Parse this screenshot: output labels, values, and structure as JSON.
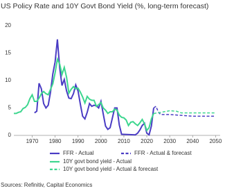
{
  "chart_data": {
    "type": "line",
    "title": "US Policy Rate and 10Y Govt Bond Yield (%, long-term forecast)",
    "source": "Sources: Refinitiv, Capital Economics",
    "xlim": [
      1962,
      2052
    ],
    "xticks": [
      1970,
      1980,
      1990,
      2000,
      2010,
      2020,
      2030,
      2040,
      2050
    ],
    "ylim": [
      0,
      20
    ],
    "yticks": [
      0,
      5,
      10,
      15,
      20
    ],
    "series": [
      {
        "name": "FFR - Actual",
        "color": "#4a3cc4",
        "dashed": false,
        "x": [
          1971,
          1972,
          1973,
          1974,
          1975,
          1976,
          1977,
          1978,
          1979,
          1980,
          1981,
          1982,
          1983,
          1984,
          1985,
          1986,
          1987,
          1988,
          1989,
          1990,
          1991,
          1992,
          1993,
          1994,
          1995,
          1996,
          1997,
          1998,
          1999,
          2000,
          2001,
          2002,
          2003,
          2004,
          2005,
          2006,
          2007,
          2008,
          2009,
          2015,
          2016,
          2017,
          2018,
          2019,
          2020,
          2021,
          2022,
          2023
        ],
        "values": [
          4.1,
          4.4,
          9.5,
          8.5,
          5.8,
          5.0,
          5.5,
          7.9,
          11.2,
          13.4,
          17.5,
          12.3,
          9.1,
          10.2,
          8.1,
          6.8,
          6.7,
          7.6,
          9.2,
          8.1,
          5.7,
          3.5,
          3.0,
          4.2,
          5.8,
          5.3,
          5.5,
          5.4,
          5.0,
          6.2,
          3.9,
          1.7,
          1.1,
          1.4,
          3.2,
          5.0,
          5.0,
          1.9,
          0.2,
          0.1,
          0.4,
          1.0,
          1.8,
          2.2,
          0.4,
          0.1,
          1.7,
          5.0
        ]
      },
      {
        "name": "FFR - Actual & forecast",
        "color": "#4a3cc4",
        "dashed": true,
        "x": [
          2023,
          2024,
          2025,
          2026,
          2027,
          2030,
          2040,
          2050
        ],
        "values": [
          5.0,
          5.3,
          4.3,
          3.8,
          3.8,
          3.8,
          3.5,
          3.5
        ]
      },
      {
        "name": "10Y govt bond yield - Actual",
        "color": "#3dd68f",
        "dashed": false,
        "x": [
          1962,
          1963,
          1964,
          1965,
          1966,
          1967,
          1968,
          1969,
          1970,
          1971,
          1972,
          1973,
          1974,
          1975,
          1976,
          1977,
          1978,
          1979,
          1980,
          1981,
          1982,
          1983,
          1984,
          1985,
          1986,
          1987,
          1988,
          1989,
          1990,
          1991,
          1992,
          1993,
          1994,
          1995,
          1996,
          1997,
          1998,
          1999,
          2000,
          2001,
          2002,
          2003,
          2004,
          2005,
          2006,
          2007,
          2008,
          2009,
          2010,
          2011,
          2012,
          2013,
          2014,
          2015,
          2016,
          2017,
          2018,
          2019,
          2020,
          2021,
          2022,
          2023
        ],
        "values": [
          4.0,
          4.0,
          4.2,
          4.3,
          4.9,
          5.1,
          5.6,
          6.7,
          7.4,
          6.2,
          6.2,
          6.8,
          7.6,
          8.0,
          7.6,
          7.4,
          8.4,
          9.4,
          11.4,
          13.9,
          13.0,
          11.1,
          12.4,
          10.6,
          7.7,
          8.4,
          8.9,
          8.5,
          8.6,
          7.9,
          7.0,
          5.9,
          7.1,
          6.6,
          6.4,
          6.4,
          5.3,
          5.6,
          6.0,
          5.0,
          4.6,
          4.0,
          4.3,
          4.3,
          4.8,
          4.6,
          3.7,
          3.3,
          3.2,
          2.8,
          1.8,
          2.4,
          2.5,
          2.1,
          1.8,
          2.3,
          2.9,
          2.1,
          0.9,
          1.4,
          3.0,
          4.0
        ]
      },
      {
        "name": "10Y govt bond yield - Actual & forecast",
        "color": "#3dd68f",
        "dashed": true,
        "x": [
          2023,
          2025,
          2030,
          2033,
          2035,
          2050
        ],
        "values": [
          4.0,
          4.1,
          4.5,
          4.4,
          4.1,
          4.1
        ]
      }
    ]
  }
}
